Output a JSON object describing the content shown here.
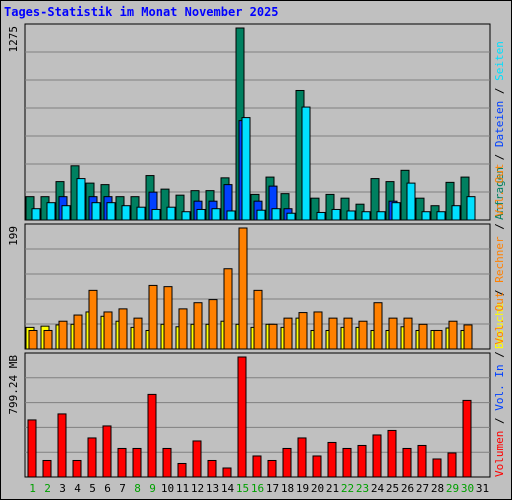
{
  "title": "Tages-Statistik im Monat November 2025",
  "days": [
    "1",
    "2",
    "3",
    "4",
    "5",
    "6",
    "7",
    "8",
    "9",
    "10",
    "11",
    "12",
    "13",
    "14",
    "15",
    "16",
    "17",
    "18",
    "19",
    "20",
    "21",
    "22",
    "23",
    "24",
    "25",
    "26",
    "27",
    "28",
    "29",
    "30",
    "31"
  ],
  "weekend_days": [
    "1",
    "2",
    "8",
    "9",
    "15",
    "16",
    "22",
    "23",
    "29",
    "30"
  ],
  "colors": {
    "anfragen": "#008060",
    "dateien": "#0040ff",
    "seiten": "#00e0ff",
    "besuche": "#ffff00",
    "rechner": "#ff8000",
    "volumen": "#ff0000",
    "day_weekday": "#000000",
    "day_weekend": "#00a000",
    "title": "#0000ff"
  },
  "chart_data": [
    {
      "type": "bar",
      "scale_label": "1275",
      "legend": [
        "Anfragen",
        "/",
        "Dateien",
        "/",
        "Seiten"
      ],
      "categories": [
        "1",
        "2",
        "3",
        "4",
        "5",
        "6",
        "7",
        "8",
        "9",
        "10",
        "11",
        "12",
        "13",
        "14",
        "15",
        "16",
        "17",
        "18",
        "19",
        "20",
        "21",
        "22",
        "23",
        "24",
        "25",
        "26",
        "27",
        "28",
        "29",
        "30",
        "31"
      ],
      "series": [
        {
          "name": "Anfragen",
          "values": [
            155,
            155,
            255,
            360,
            245,
            235,
            155,
            155,
            295,
            205,
            165,
            195,
            195,
            280,
            1275,
            170,
            285,
            175,
            860,
            145,
            170,
            145,
            105,
            275,
            255,
            330,
            145,
            95,
            250,
            285,
            0
          ]
        },
        {
          "name": "Dateien",
          "values": [
            0,
            0,
            155,
            0,
            155,
            155,
            0,
            0,
            185,
            0,
            0,
            125,
            125,
            235,
            660,
            125,
            225,
            75,
            0,
            0,
            0,
            0,
            0,
            0,
            125,
            0,
            0,
            0,
            0,
            0,
            0
          ]
        },
        {
          "name": "Seiten",
          "values": [
            75,
            115,
            95,
            275,
            115,
            115,
            95,
            85,
            70,
            85,
            55,
            70,
            75,
            60,
            680,
            65,
            75,
            45,
            750,
            50,
            70,
            60,
            55,
            55,
            115,
            245,
            55,
            55,
            95,
            155,
            0
          ]
        }
      ]
    },
    {
      "type": "bar",
      "scale_label": "199",
      "legend": [
        "Besuche",
        "/",
        "Rechner",
        "/",
        "Vol. Out"
      ],
      "categories": [
        "1",
        "2",
        "3",
        "4",
        "5",
        "6",
        "7",
        "8",
        "9",
        "10",
        "11",
        "12",
        "13",
        "14",
        "15",
        "16",
        "17",
        "18",
        "19",
        "20",
        "21",
        "22",
        "23",
        "24",
        "25",
        "26",
        "27",
        "28",
        "29",
        "30",
        "31"
      ],
      "series": [
        {
          "name": "Besuche",
          "values": [
            35,
            37,
            39,
            40,
            60,
            53,
            45,
            35,
            30,
            40,
            36,
            40,
            40,
            45,
            40,
            35,
            40,
            35,
            50,
            30,
            30,
            35,
            35,
            30,
            30,
            36,
            30,
            30,
            34,
            30,
            0
          ]
        },
        {
          "name": "Rechner",
          "values": [
            30,
            30,
            45,
            55,
            95,
            60,
            65,
            50,
            103,
            101,
            65,
            75,
            80,
            130,
            196,
            95,
            40,
            50,
            59,
            60,
            50,
            50,
            45,
            75,
            50,
            50,
            40,
            30,
            45,
            39,
            0
          ]
        }
      ]
    },
    {
      "type": "bar",
      "scale_label": "799.24 MB",
      "legend": [
        "Volumen",
        "/",
        "Vol. In",
        "/",
        "Vol. Out"
      ],
      "categories": [
        "1",
        "2",
        "3",
        "4",
        "5",
        "6",
        "7",
        "8",
        "9",
        "10",
        "11",
        "12",
        "13",
        "14",
        "15",
        "16",
        "17",
        "18",
        "19",
        "20",
        "21",
        "22",
        "23",
        "24",
        "25",
        "26",
        "27",
        "28",
        "29",
        "30",
        "31"
      ],
      "series": [
        {
          "name": "Volumen",
          "values": [
            380,
            110,
            420,
            110,
            260,
            340,
            190,
            190,
            550,
            190,
            90,
            240,
            110,
            60,
            799,
            140,
            110,
            190,
            260,
            140,
            230,
            190,
            210,
            280,
            310,
            190,
            210,
            120,
            160,
            510,
            0
          ]
        }
      ]
    }
  ]
}
